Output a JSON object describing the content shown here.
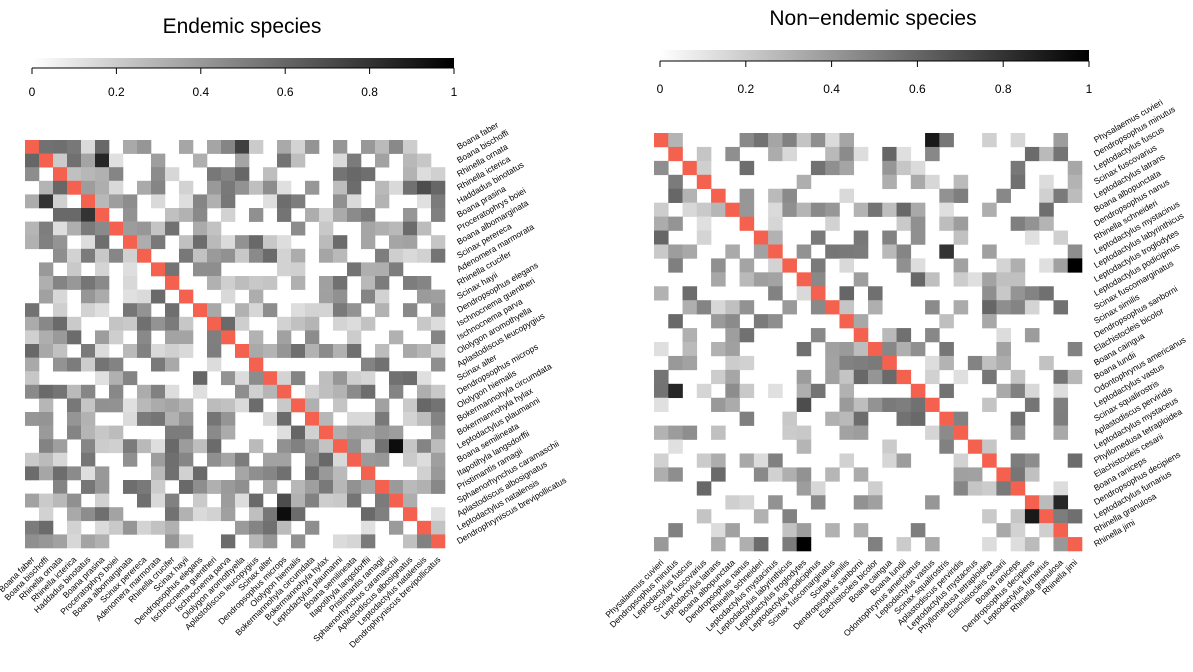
{
  "chart_data": [
    {
      "type": "heatmap",
      "title": "Endemic species",
      "colorbar": {
        "range": [
          0,
          1
        ],
        "ticks": [
          "0",
          "0.2",
          "0.4",
          "0.6",
          "0.8",
          "1"
        ],
        "low_color": "#ffffff",
        "high_color": "#000000"
      },
      "diagonal_color": "#f4624f",
      "row_labels": [
        "Boana faber",
        "Boana bischoffi",
        "Rhinella ornata",
        "Rhinella icterica",
        "Haddadus binotatus",
        "Boana prasina",
        "Proceratophrys boiei",
        "Boana albomarginata",
        "Scinax perereca",
        "Adenomera marmorata",
        "Rhinella crucifer",
        "Scinax hayii",
        "Dendropsophus elegans",
        "Ischnocnema guentheri",
        "Ischnocnema parva",
        "Ololygon aromothyella",
        "Aplastodiscus leucopygius",
        "Scinax alter",
        "Dendropsophus microps",
        "Ololygon hiemalis",
        "Bokermannohyla circumdata",
        "Bokermannohyla hylax",
        "Leptodactylus plaumanni",
        "Boana semilineata",
        "Itapotihyla langsdorffii",
        "Pristimantis ramagii",
        "Sphaenorhynchus caramaschii",
        "Aplastodiscus albosignatus",
        "Leptodactylus natalensis",
        "Dendrophryniscus brevipollicatus"
      ],
      "col_labels": [
        "Boana faber",
        "Boana bischoffi",
        "Rhinella ornata",
        "Rhinella icterica",
        "Haddadus binotatus",
        "Boana prasina",
        "Proceratophrys boiei",
        "Boana albomarginata",
        "Scinax perereca",
        "Adenomera marmorata",
        "Rhinella crucifer",
        "Scinax hayii",
        "Dendropsophus elegans",
        "Ischnocnema guentheri",
        "Ischnocnema parva",
        "Ololygon aromothyella",
        "Aplastodiscus leucopygius",
        "Scinax alter",
        "Dendropsophus microps",
        "Ololygon hiemalis",
        "Bokermannohyla circumdata",
        "Bokermannohyla hylax",
        "Leptodactylus plaumanni",
        "Boana semilineata",
        "Itapotihyla langsdorffii",
        "Pristimantis ramagii",
        "Sphaenorhynchus caramaschii",
        "Aplastodiscus albosignatus",
        "Leptodactylus natalensis",
        "Dendrophryniscus brevipollicatus"
      ],
      "values_note_free": true,
      "seed": 7,
      "density": 0.62,
      "strong": [
        [
          1,
          5,
          0.85
        ],
        [
          4,
          1,
          0.8
        ],
        [
          5,
          4,
          0.8
        ],
        [
          22,
          26,
          0.95
        ],
        [
          27,
          18,
          0.95
        ],
        [
          0,
          15,
          0.75
        ],
        [
          26,
          18,
          0.7
        ],
        [
          3,
          28,
          0.7
        ]
      ]
    },
    {
      "type": "heatmap",
      "title": "Non−endemic species",
      "colorbar": {
        "range": [
          0,
          1
        ],
        "ticks": [
          "0",
          "0.2",
          "0.4",
          "0.6",
          "0.8",
          "1"
        ],
        "low_color": "#ffffff",
        "high_color": "#000000"
      },
      "diagonal_color": "#f4624f",
      "row_labels": [
        "Physalaemus cuvieri",
        "Dendropsophus minutus",
        "Leptodactylus fuscus",
        "Scinax fuscovarius",
        "Leptodactylus latrans",
        "Boana albopunctata",
        "Dendropsophus nanus",
        "Rhinella schneideri",
        "Leptodactylus mystacinus",
        "Leptodactylus labyrinthicus",
        "Leptodactylus troglodytes",
        "Leptodactylus podicipinus",
        "Scinax fuscomarginatus",
        "Scinax similis",
        "Dendropsophus sanborni",
        "Elachistocleis bicolor",
        "Boana caingua",
        "Boana lundii",
        "Odontophrynus americanus",
        "Leptodactylus vastus",
        "Scinax squalirostris",
        "Aplastodiscus perviridis",
        "Leptodactylus mystaceus",
        "Phyllomedusa tetraploidea",
        "Elachistocleis cesarii",
        "Boana raniceps",
        "Dendropsophus decipiens",
        "Leptodactylus furnarius",
        "Rhinella granulosa",
        "Rhinella jimi"
      ],
      "col_labels": [
        "Physalaemus cuvieri",
        "Dendropsophus minutus",
        "Leptodactylus fuscus",
        "Scinax fuscovarius",
        "Leptodactylus latrans",
        "Boana albopunctata",
        "Dendropsophus nanus",
        "Rhinella schneideri",
        "Leptodactylus mystacinus",
        "Leptodactylus labyrinthicus",
        "Leptodactylus troglodytes",
        "Leptodactylus podicipinus",
        "Scinax fuscomarginatus",
        "Scinax similis",
        "Dendropsophus sanborni",
        "Elachistocleis bicolor",
        "Boana caingua",
        "Boana lundii",
        "Odontophrynus americanus",
        "Leptodactylus vastus",
        "Scinax squalirostris",
        "Aplastodiscus perviridis",
        "Leptodactylus mystaceus",
        "Phyllomedusa tetraploidea",
        "Elachistocleis cesarii",
        "Boana raniceps",
        "Dendropsophus decipiens",
        "Leptodactylus furnarius",
        "Rhinella granulosa",
        "Rhinella jimi"
      ],
      "seed": 23,
      "density": 0.42,
      "strong": [
        [
          0,
          19,
          0.9
        ],
        [
          29,
          10,
          1.0
        ],
        [
          9,
          29,
          1.0
        ],
        [
          18,
          1,
          0.85
        ],
        [
          27,
          26,
          0.9
        ],
        [
          26,
          28,
          0.85
        ],
        [
          8,
          20,
          0.8
        ],
        [
          19,
          10,
          0.7
        ]
      ]
    }
  ]
}
